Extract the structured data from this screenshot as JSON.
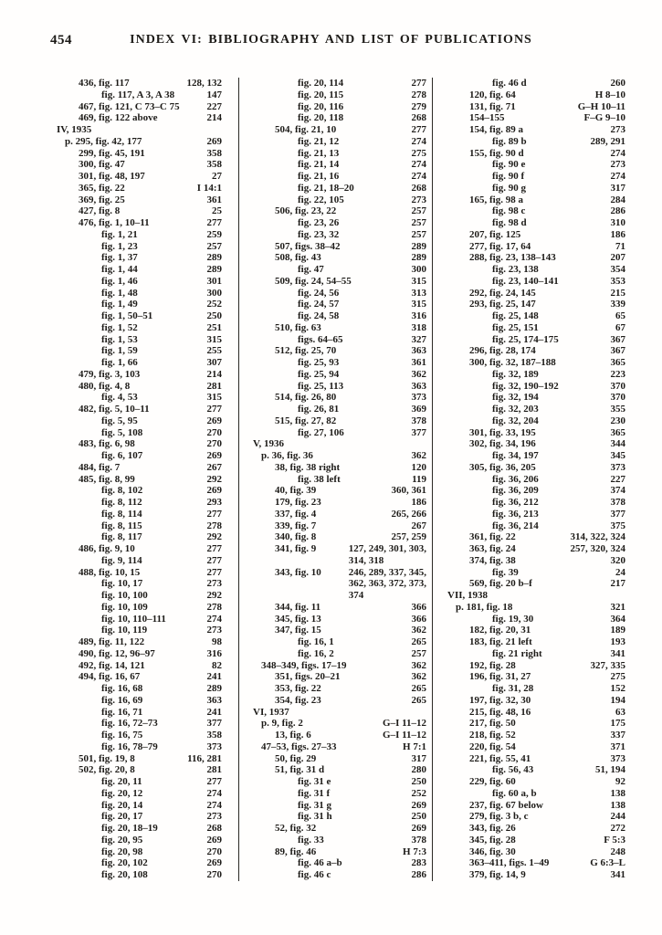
{
  "header": {
    "page_number": "454",
    "title": "INDEX VI: BIBLIOGRAPHY AND LIST OF PUBLICATIONS"
  },
  "colors": {
    "paper": "#fffefd",
    "ink": "#1d1b18",
    "divider": "#2b2925"
  },
  "columns": [
    {
      "entries": [
        {
          "t": "436, fig. 117",
          "p": "128, 132",
          "i": "n"
        },
        {
          "t": "fig. 117, A 3, A 38",
          "p": "147",
          "i": "f"
        },
        {
          "t": "467, fig. 121, C 73–C 75",
          "p": "227",
          "i": "n"
        },
        {
          "t": "469, fig. 122 above",
          "p": "214",
          "i": "n"
        },
        {
          "t": "IV, 1935",
          "p": "",
          "i": "h"
        },
        {
          "t": "p. 295, fig. 42, 177",
          "p": "269",
          "i": "p"
        },
        {
          "t": "299, fig. 45, 191",
          "p": "358",
          "i": "n"
        },
        {
          "t": "300, fig. 47",
          "p": "358",
          "i": "n"
        },
        {
          "t": "301, fig. 48, 197",
          "p": "27",
          "i": "n"
        },
        {
          "t": "365, fig. 22",
          "p": "I 14:1",
          "i": "n"
        },
        {
          "t": "369, fig. 25",
          "p": "361",
          "i": "n"
        },
        {
          "t": "427, fig. 8",
          "p": "25",
          "i": "n"
        },
        {
          "t": "476, fig. 1, 10–11",
          "p": "277",
          "i": "n"
        },
        {
          "t": "fig. 1, 21",
          "p": "259",
          "i": "f"
        },
        {
          "t": "fig. 1, 23",
          "p": "257",
          "i": "f"
        },
        {
          "t": "fig. 1, 37",
          "p": "289",
          "i": "f"
        },
        {
          "t": "fig. 1, 44",
          "p": "289",
          "i": "f"
        },
        {
          "t": "fig. 1, 46",
          "p": "301",
          "i": "f"
        },
        {
          "t": "fig. 1, 48",
          "p": "300",
          "i": "f"
        },
        {
          "t": "fig. 1, 49",
          "p": "252",
          "i": "f"
        },
        {
          "t": "fig. 1, 50–51",
          "p": "250",
          "i": "f"
        },
        {
          "t": "fig. 1, 52",
          "p": "251",
          "i": "f"
        },
        {
          "t": "fig. 1, 53",
          "p": "315",
          "i": "f"
        },
        {
          "t": "fig. 1, 59",
          "p": "255",
          "i": "f"
        },
        {
          "t": "fig. 1, 66",
          "p": "307",
          "i": "f"
        },
        {
          "t": "479, fig. 3, 103",
          "p": "214",
          "i": "n"
        },
        {
          "t": "480, fig. 4, 8",
          "p": "281",
          "i": "n"
        },
        {
          "t": "fig. 4, 53",
          "p": "315",
          "i": "f"
        },
        {
          "t": "482, fig. 5, 10–11",
          "p": "277",
          "i": "n"
        },
        {
          "t": "fig. 5, 95",
          "p": "269",
          "i": "f"
        },
        {
          "t": "fig. 5, 108",
          "p": "270",
          "i": "f"
        },
        {
          "t": "483, fig. 6, 98",
          "p": "270",
          "i": "n"
        },
        {
          "t": "fig. 6, 107",
          "p": "269",
          "i": "f"
        },
        {
          "t": "484, fig. 7",
          "p": "267",
          "i": "n"
        },
        {
          "t": "485, fig. 8, 99",
          "p": "292",
          "i": "n"
        },
        {
          "t": "fig. 8, 102",
          "p": "269",
          "i": "f"
        },
        {
          "t": "fig. 8, 112",
          "p": "293",
          "i": "f"
        },
        {
          "t": "fig. 8, 114",
          "p": "277",
          "i": "f"
        },
        {
          "t": "fig. 8, 115",
          "p": "278",
          "i": "f"
        },
        {
          "t": "fig. 8, 117",
          "p": "292",
          "i": "f"
        },
        {
          "t": "486, fig. 9, 10",
          "p": "277",
          "i": "n"
        },
        {
          "t": "fig. 9, 114",
          "p": "277",
          "i": "f"
        },
        {
          "t": "488, fig. 10, 15",
          "p": "277",
          "i": "n"
        },
        {
          "t": "fig. 10, 17",
          "p": "273",
          "i": "f"
        },
        {
          "t": "fig. 10, 100",
          "p": "292",
          "i": "f"
        },
        {
          "t": "fig. 10, 109",
          "p": "278",
          "i": "f"
        },
        {
          "t": "fig. 10, 110–111",
          "p": "274",
          "i": "f"
        },
        {
          "t": "fig. 10, 119",
          "p": "273",
          "i": "f"
        },
        {
          "t": "489, fig. 11, 122",
          "p": "98",
          "i": "n"
        },
        {
          "t": "490, fig. 12, 96–97",
          "p": "316",
          "i": "n"
        },
        {
          "t": "492, fig. 14, 121",
          "p": "82",
          "i": "n"
        },
        {
          "t": "494, fig. 16, 67",
          "p": "241",
          "i": "n"
        },
        {
          "t": "fig. 16, 68",
          "p": "289",
          "i": "f"
        },
        {
          "t": "fig. 16, 69",
          "p": "363",
          "i": "f"
        },
        {
          "t": "fig. 16, 71",
          "p": "241",
          "i": "f"
        },
        {
          "t": "fig. 16, 72–73",
          "p": "377",
          "i": "f"
        },
        {
          "t": "fig. 16, 75",
          "p": "358",
          "i": "f"
        },
        {
          "t": "fig. 16, 78–79",
          "p": "373",
          "i": "f"
        },
        {
          "t": "501, fig. 19, 8",
          "p": "116, 281",
          "i": "n"
        },
        {
          "t": "502, fig. 20, 8",
          "p": "281",
          "i": "n"
        },
        {
          "t": "fig. 20, 11",
          "p": "277",
          "i": "f"
        },
        {
          "t": "fig. 20, 12",
          "p": "274",
          "i": "f"
        },
        {
          "t": "fig. 20, 14",
          "p": "274",
          "i": "f"
        },
        {
          "t": "fig. 20, 17",
          "p": "273",
          "i": "f"
        },
        {
          "t": "fig. 20, 18–19",
          "p": "268",
          "i": "f"
        },
        {
          "t": "fig. 20, 95",
          "p": "269",
          "i": "f"
        },
        {
          "t": "fig. 20, 98",
          "p": "270",
          "i": "f"
        },
        {
          "t": "fig. 20, 102",
          "p": "269",
          "i": "f"
        },
        {
          "t": "fig. 20, 108",
          "p": "270",
          "i": "f"
        }
      ]
    },
    {
      "entries": [
        {
          "t": "fig. 20, 114",
          "p": "277",
          "i": "f"
        },
        {
          "t": "fig. 20, 115",
          "p": "278",
          "i": "f"
        },
        {
          "t": "fig. 20, 116",
          "p": "279",
          "i": "f"
        },
        {
          "t": "fig. 20, 118",
          "p": "268",
          "i": "f"
        },
        {
          "t": "504, fig. 21, 10",
          "p": "277",
          "i": "n"
        },
        {
          "t": "fig. 21, 12",
          "p": "274",
          "i": "f"
        },
        {
          "t": "fig. 21, 13",
          "p": "275",
          "i": "f"
        },
        {
          "t": "fig. 21, 14",
          "p": "274",
          "i": "f"
        },
        {
          "t": "fig. 21, 16",
          "p": "274",
          "i": "f"
        },
        {
          "t": "fig. 21, 18–20",
          "p": "268",
          "i": "f"
        },
        {
          "t": "fig. 22, 105",
          "p": "273",
          "i": "f"
        },
        {
          "t": "506, fig. 23, 22",
          "p": "257",
          "i": "n"
        },
        {
          "t": "fig. 23, 26",
          "p": "257",
          "i": "f"
        },
        {
          "t": "fig. 23, 32",
          "p": "257",
          "i": "f"
        },
        {
          "t": "507, figs. 38–42",
          "p": "289",
          "i": "n"
        },
        {
          "t": "508, fig. 43",
          "p": "289",
          "i": "n"
        },
        {
          "t": "fig. 47",
          "p": "300",
          "i": "f"
        },
        {
          "t": "509, fig. 24, 54–55",
          "p": "315",
          "i": "n"
        },
        {
          "t": "fig. 24, 56",
          "p": "313",
          "i": "f"
        },
        {
          "t": "fig. 24, 57",
          "p": "315",
          "i": "f"
        },
        {
          "t": "fig. 24, 58",
          "p": "316",
          "i": "f"
        },
        {
          "t": "510, fig. 63",
          "p": "318",
          "i": "n"
        },
        {
          "t": "figs. 64–65",
          "p": "327",
          "i": "f"
        },
        {
          "t": "512, fig. 25, 70",
          "p": "363",
          "i": "n"
        },
        {
          "t": "fig. 25, 93",
          "p": "361",
          "i": "f"
        },
        {
          "t": "fig. 25, 94",
          "p": "362",
          "i": "f"
        },
        {
          "t": "fig. 25, 113",
          "p": "363",
          "i": "f"
        },
        {
          "t": "514, fig. 26, 80",
          "p": "373",
          "i": "n"
        },
        {
          "t": "fig. 26, 81",
          "p": "369",
          "i": "f"
        },
        {
          "t": "515, fig. 27, 82",
          "p": "378",
          "i": "n"
        },
        {
          "t": "fig. 27, 106",
          "p": "377",
          "i": "f"
        },
        {
          "t": "V, 1936",
          "p": "",
          "i": "h"
        },
        {
          "t": "p. 36, fig. 36",
          "p": "362",
          "i": "p"
        },
        {
          "t": "38, fig. 38 right",
          "p": "120",
          "i": "n"
        },
        {
          "t": "fig. 38 left",
          "p": "119",
          "i": "f"
        },
        {
          "t": "40, fig. 39",
          "p": "360, 361",
          "i": "n"
        },
        {
          "t": "179, fig. 23",
          "p": "186",
          "i": "n"
        },
        {
          "t": "337, fig. 4",
          "p": "265, 266",
          "i": "n"
        },
        {
          "t": "339, fig. 7",
          "p": "267",
          "i": "n"
        },
        {
          "t": "340, fig. 8",
          "p": "257, 259",
          "i": "n"
        },
        {
          "t": "341, fig. 9",
          "p": [
            "127, 249, 301, 303,",
            "314, 318"
          ],
          "i": "n"
        },
        {
          "t": "343, fig. 10",
          "p": [
            "246, 289, 337, 345,",
            "362, 363, 372, 373,",
            "374"
          ],
          "i": "n"
        },
        {
          "t": "344, fig. 11",
          "p": "366",
          "i": "n"
        },
        {
          "t": "345, fig. 13",
          "p": "366",
          "i": "n"
        },
        {
          "t": "347, fig. 15",
          "p": "362",
          "i": "n"
        },
        {
          "t": "fig. 16, 1",
          "p": "265",
          "i": "f"
        },
        {
          "t": "fig. 16, 2",
          "p": "257",
          "i": "f"
        },
        {
          "t": "348–349, figs. 17–19",
          "p": "362",
          "i": "p"
        },
        {
          "t": "351, figs. 20–21",
          "p": "362",
          "i": "n"
        },
        {
          "t": "353, fig. 22",
          "p": "265",
          "i": "n"
        },
        {
          "t": "354, fig. 23",
          "p": "265",
          "i": "n"
        },
        {
          "t": "VI, 1937",
          "p": "",
          "i": "h"
        },
        {
          "t": "p. 9, fig. 2",
          "p": "G–I 11–12",
          "i": "p"
        },
        {
          "t": "13, fig. 6",
          "p": "G–I 11–12",
          "i": "n"
        },
        {
          "t": "47–53, figs. 27–33",
          "p": "H 7:1",
          "i": "p"
        },
        {
          "t": "50, fig. 29",
          "p": "317",
          "i": "n"
        },
        {
          "t": "51, fig. 31 d",
          "p": "280",
          "i": "n"
        },
        {
          "t": "fig. 31 e",
          "p": "250",
          "i": "f"
        },
        {
          "t": "fig. 31 f",
          "p": "252",
          "i": "f"
        },
        {
          "t": "fig. 31 g",
          "p": "269",
          "i": "f"
        },
        {
          "t": "fig. 31 h",
          "p": "250",
          "i": "f"
        },
        {
          "t": "52, fig. 32",
          "p": "269",
          "i": "n"
        },
        {
          "t": "fig. 33",
          "p": "378",
          "i": "f"
        },
        {
          "t": "89, fig. 46",
          "p": "H 7:3",
          "i": "n"
        },
        {
          "t": "fig. 46 a–b",
          "p": "283",
          "i": "f"
        },
        {
          "t": "fig. 46 c",
          "p": "286",
          "i": "f"
        }
      ]
    },
    {
      "entries": [
        {
          "t": "fig. 46 d",
          "p": "260",
          "i": "f"
        },
        {
          "t": "120, fig. 64",
          "p": "H 8–10",
          "i": "n"
        },
        {
          "t": "131, fig. 71",
          "p": "G–H 10–11",
          "i": "n"
        },
        {
          "t": "154–155",
          "p": "F–G 9–10",
          "i": "n"
        },
        {
          "t": "154, fig. 89 a",
          "p": "273",
          "i": "n"
        },
        {
          "t": "fig. 89 b",
          "p": "289, 291",
          "i": "f"
        },
        {
          "t": "155, fig. 90 d",
          "p": "274",
          "i": "n"
        },
        {
          "t": "fig. 90 e",
          "p": "273",
          "i": "f"
        },
        {
          "t": "fig. 90 f",
          "p": "274",
          "i": "f"
        },
        {
          "t": "fig. 90 g",
          "p": "317",
          "i": "f"
        },
        {
          "t": "165, fig. 98 a",
          "p": "284",
          "i": "n"
        },
        {
          "t": "fig. 98 c",
          "p": "286",
          "i": "f"
        },
        {
          "t": "fig. 98 d",
          "p": "310",
          "i": "f"
        },
        {
          "t": "207, fig. 125",
          "p": "186",
          "i": "n"
        },
        {
          "t": "277, fig. 17, 64",
          "p": "71",
          "i": "n"
        },
        {
          "t": "288, fig. 23, 138–143",
          "p": "207",
          "i": "n"
        },
        {
          "t": "fig. 23, 138",
          "p": "354",
          "i": "f"
        },
        {
          "t": "fig. 23, 140–141",
          "p": "353",
          "i": "f"
        },
        {
          "t": "292, fig. 24, 145",
          "p": "215",
          "i": "n"
        },
        {
          "t": "293, fig. 25, 147",
          "p": "339",
          "i": "n"
        },
        {
          "t": "fig. 25, 148",
          "p": "65",
          "i": "f"
        },
        {
          "t": "fig. 25, 151",
          "p": "67",
          "i": "f"
        },
        {
          "t": "fig. 25, 174–175",
          "p": "367",
          "i": "f"
        },
        {
          "t": "296, fig. 28, 174",
          "p": "367",
          "i": "n"
        },
        {
          "t": "300, fig. 32, 187–188",
          "p": "365",
          "i": "n"
        },
        {
          "t": "fig. 32, 189",
          "p": "223",
          "i": "f"
        },
        {
          "t": "fig. 32, 190–192",
          "p": "370",
          "i": "f"
        },
        {
          "t": "fig. 32, 194",
          "p": "370",
          "i": "f"
        },
        {
          "t": "fig. 32, 203",
          "p": "355",
          "i": "f"
        },
        {
          "t": "fig. 32, 204",
          "p": "230",
          "i": "f"
        },
        {
          "t": "301, fig. 33, 195",
          "p": "365",
          "i": "n"
        },
        {
          "t": "302, fig. 34, 196",
          "p": "344",
          "i": "n"
        },
        {
          "t": "fig. 34, 197",
          "p": "345",
          "i": "f"
        },
        {
          "t": "305, fig. 36, 205",
          "p": "373",
          "i": "n"
        },
        {
          "t": "fig. 36, 206",
          "p": "227",
          "i": "f"
        },
        {
          "t": "fig. 36, 209",
          "p": "374",
          "i": "f"
        },
        {
          "t": "fig. 36, 212",
          "p": "378",
          "i": "f"
        },
        {
          "t": "fig. 36, 213",
          "p": "377",
          "i": "f"
        },
        {
          "t": "fig. 36, 214",
          "p": "375",
          "i": "f"
        },
        {
          "t": "361, fig. 22",
          "p": "314, 322, 324",
          "i": "n"
        },
        {
          "t": "363, fig. 24",
          "p": "257, 320, 324",
          "i": "n"
        },
        {
          "t": "374, fig. 38",
          "p": "320",
          "i": "n"
        },
        {
          "t": "fig. 39",
          "p": "24",
          "i": "f"
        },
        {
          "t": "569, fig. 20 b–f",
          "p": "217",
          "i": "n"
        },
        {
          "t": "VII, 1938",
          "p": "",
          "i": "h"
        },
        {
          "t": "p. 181, fig. 18",
          "p": "321",
          "i": "p"
        },
        {
          "t": "fig. 19, 30",
          "p": "364",
          "i": "f"
        },
        {
          "t": "182, fig. 20, 31",
          "p": "189",
          "i": "n"
        },
        {
          "t": "183, fig. 21 left",
          "p": "193",
          "i": "n"
        },
        {
          "t": "fig. 21 right",
          "p": "341",
          "i": "f"
        },
        {
          "t": "192, fig. 28",
          "p": "327, 335",
          "i": "n"
        },
        {
          "t": "196, fig. 31, 27",
          "p": "275",
          "i": "n"
        },
        {
          "t": "fig. 31, 28",
          "p": "152",
          "i": "f"
        },
        {
          "t": "197, fig. 32, 30",
          "p": "194",
          "i": "n"
        },
        {
          "t": "215, fig. 48, 16",
          "p": "63",
          "i": "n"
        },
        {
          "t": "217, fig. 50",
          "p": "175",
          "i": "n"
        },
        {
          "t": "218, fig. 52",
          "p": "337",
          "i": "n"
        },
        {
          "t": "220, fig. 54",
          "p": "371",
          "i": "n"
        },
        {
          "t": "221, fig. 55, 41",
          "p": "373",
          "i": "n"
        },
        {
          "t": "fig. 56, 43",
          "p": "51, 194",
          "i": "f"
        },
        {
          "t": "229, fig. 60",
          "p": "92",
          "i": "n"
        },
        {
          "t": "fig. 60 a, b",
          "p": "138",
          "i": "f"
        },
        {
          "t": "237, fig. 67 below",
          "p": "138",
          "i": "n"
        },
        {
          "t": "279, fig. 3 b, c",
          "p": "244",
          "i": "n"
        },
        {
          "t": "343, fig. 26",
          "p": "272",
          "i": "n"
        },
        {
          "t": "345, fig. 28",
          "p": "F 5:3",
          "i": "n"
        },
        {
          "t": "346, fig. 30",
          "p": "248",
          "i": "n"
        },
        {
          "t": "363–411, figs. 1–49",
          "p": "G 6:3–L",
          "i": "n"
        },
        {
          "t": "379, fig. 14, 9",
          "p": "341",
          "i": "n"
        }
      ]
    }
  ]
}
